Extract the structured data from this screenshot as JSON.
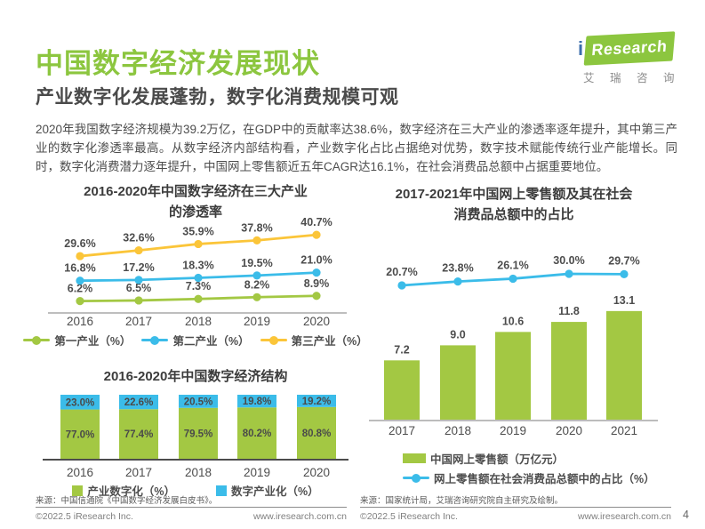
{
  "page": {
    "title": "中国数字经济发展现状",
    "subtitle": "产业数字化发展蓬勃，数字化消费规模可观",
    "body": "2020年我国数字经济规模为39.2万亿，在GDP中的贡献率达38.6%，数字经济在三大产业的渗透率逐年提升，其中第三产业的数字化渗透率最高。从数字经济内部结构看，产业数字化占比占据绝对优势，数字技术赋能传统行业产能增长。同时，数字化消费潜力逐年提升，中国网上零售额近五年CAGR达16.1%，在社会消费品总额中占据重要地位。",
    "page_number": "4"
  },
  "logo": {
    "i": "i",
    "word": "Research",
    "cn": "艾瑞咨询"
  },
  "footer": {
    "copyright": "©2022.5 iResearch Inc.",
    "website": "www.iresearch.com.cn"
  },
  "colors": {
    "brand_green": "#8CC63F",
    "chart_green": "#A3C843",
    "chart_blue": "#3BBCE9",
    "chart_yellow": "#FBC539",
    "label_gray": "#4d4d4d"
  },
  "sources": {
    "left": "来源：中国信通院《中国数字经济发展白皮书》。",
    "right": "来源：国家统计局，艾瑞咨询研究院自主研究及绘制。"
  },
  "chart_data": [
    {
      "id": "penetration",
      "type": "line",
      "title": "2016-2020年中国数字经济在三大产业的渗透率",
      "categories": [
        "2016",
        "2017",
        "2018",
        "2019",
        "2020"
      ],
      "series": [
        {
          "name": "第一产业（%）",
          "color": "#A3C843",
          "values": [
            6.2,
            6.5,
            7.3,
            8.2,
            8.9
          ]
        },
        {
          "name": "第二产业（%）",
          "color": "#3BBCE9",
          "values": [
            16.8,
            17.2,
            18.3,
            19.5,
            21.0
          ]
        },
        {
          "name": "第三产业（%）",
          "color": "#FBC539",
          "values": [
            29.6,
            32.6,
            35.9,
            37.8,
            40.7
          ]
        }
      ],
      "ylim": [
        0,
        45
      ],
      "value_suffix": "%",
      "legend_position": "bottom"
    },
    {
      "id": "structure",
      "type": "stacked-bar",
      "title": "2016-2020年中国数字经济结构",
      "categories": [
        "2016",
        "2017",
        "2018",
        "2019",
        "2020"
      ],
      "series": [
        {
          "name": "产业数字化（%）",
          "color": "#A3C843",
          "values": [
            77.0,
            77.4,
            79.5,
            80.2,
            80.8
          ]
        },
        {
          "name": "数字产业化（%）",
          "color": "#3BBCE9",
          "values": [
            23.0,
            22.6,
            20.5,
            19.8,
            19.2
          ]
        }
      ],
      "ylim": [
        0,
        100
      ],
      "value_suffix": "%",
      "legend_position": "bottom"
    },
    {
      "id": "retail",
      "type": "bar-line",
      "title": "2017-2021年中国网上零售额及其在社会消费品总额中的占比",
      "categories": [
        "2017",
        "2018",
        "2019",
        "2020",
        "2021"
      ],
      "bar_series": {
        "name": "中国网上零售额（万亿元）",
        "color": "#A3C843",
        "values": [
          7.2,
          9.0,
          10.6,
          11.8,
          13.1
        ]
      },
      "line_series": {
        "name": "网上零售额在社会消费品总额中的占比（%）",
        "color": "#3BBCE9",
        "values": [
          20.7,
          23.8,
          26.1,
          30.0,
          29.7
        ],
        "value_suffix": "%"
      },
      "legend_position": "bottom"
    }
  ]
}
